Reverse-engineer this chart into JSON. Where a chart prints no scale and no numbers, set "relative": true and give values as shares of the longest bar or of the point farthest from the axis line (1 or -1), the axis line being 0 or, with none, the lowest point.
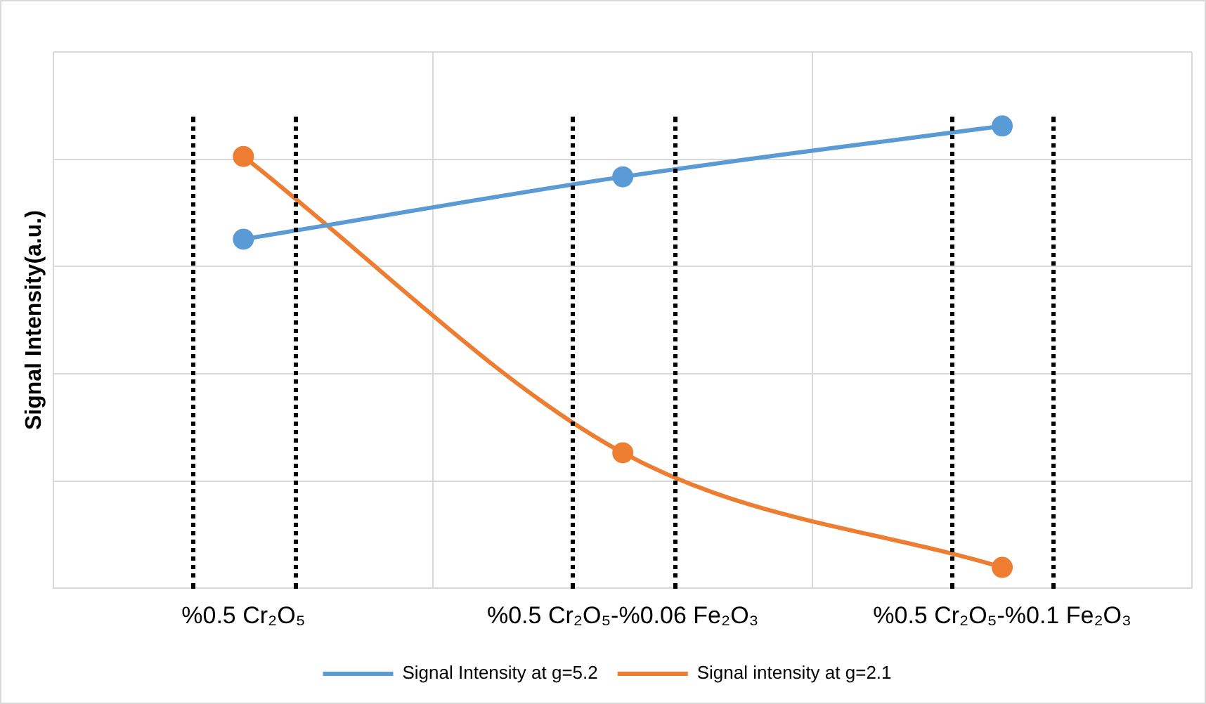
{
  "chart_data": {
    "type": "line",
    "ylabel": "Signal Intensity(a.u.)",
    "relative": true,
    "categories": [
      "%0.5 Cr₂O₅",
      "%0.5 Cr₂O₅-%0.06 Fe₂O₃",
      "%0.5 Cr₂O₅-%0.1 Fe₂O₃"
    ],
    "series": [
      {
        "name": "Signal Intensity at g=5.2",
        "color": "#5b9bd5",
        "values": [
          0.755,
          0.89,
          1
        ]
      },
      {
        "name": "Signal intensity at g=2.1",
        "color": "#ed7d31",
        "values": [
          0.934,
          0.293,
          0.045
        ]
      }
    ],
    "grid": true,
    "legend": "bottom",
    "marker": "circle",
    "line_style": "solid",
    "tick_labels": "x"
  }
}
